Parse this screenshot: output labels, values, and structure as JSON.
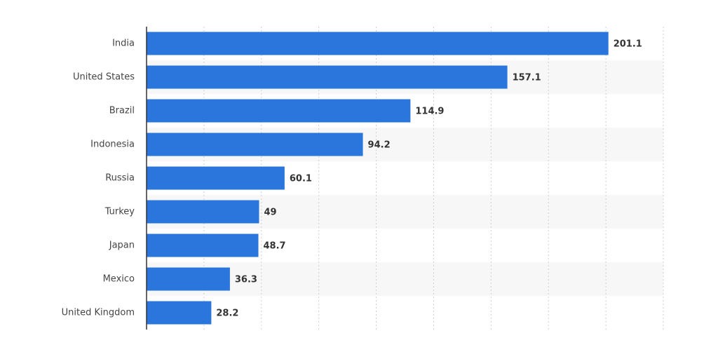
{
  "chart_data": {
    "type": "bar",
    "orientation": "horizontal",
    "categories": [
      "India",
      "United States",
      "Brazil",
      "Indonesia",
      "Russia",
      "Turkey",
      "Japan",
      "Mexico",
      "United Kingdom"
    ],
    "values": [
      201.1,
      157.1,
      114.9,
      94.2,
      60.1,
      49,
      48.7,
      36.3,
      28.2
    ],
    "value_labels": [
      "201.1",
      "157.1",
      "114.9",
      "94.2",
      "60.1",
      "49",
      "48.7",
      "36.3",
      "28.2"
    ],
    "xlim": [
      0,
      225
    ],
    "grid": true,
    "bar_color": "#2a76dd"
  }
}
